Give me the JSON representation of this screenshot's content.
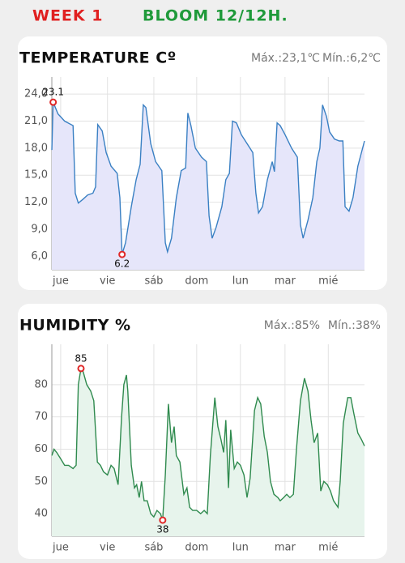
{
  "header": {
    "week": "WEEK 1",
    "bloom": "BLOOM 12/12H."
  },
  "chart_data": [
    {
      "type": "line",
      "title": "TEMPERATURE Cº",
      "stats": [
        "Máx.:23,1℃",
        "Mín.:6,2℃"
      ],
      "x": [
        -0.2,
        -0.17,
        -0.06,
        0.09,
        0.28,
        0.33,
        0.4,
        0.5,
        0.61,
        0.73,
        0.79,
        0.84,
        0.94,
        1.03,
        1.14,
        1.28,
        1.34,
        1.39,
        1.47,
        1.6,
        1.71,
        1.8,
        1.87,
        1.93,
        2.04,
        2.15,
        2.29,
        2.37,
        2.42,
        2.51,
        2.62,
        2.73,
        2.83,
        2.88,
        2.95,
        3.05,
        3.19,
        3.3,
        3.36,
        3.43,
        3.52,
        3.65,
        3.74,
        3.82,
        3.89,
        3.98,
        4.09,
        4.22,
        4.35,
        4.42,
        4.48,
        4.57,
        4.68,
        4.79,
        4.84,
        4.9,
        4.97,
        5.08,
        5.23,
        5.36,
        5.43,
        5.49,
        5.6,
        5.71,
        5.8,
        5.87,
        5.93,
        6.02,
        6.09,
        6.2,
        6.31,
        6.39,
        6.44,
        6.53,
        6.62,
        6.73,
        6.88
      ],
      "series": [
        {
          "color": "#3a80c3",
          "fill": "#e6e6fa",
          "values": [
            17.8,
            23.1,
            21.8,
            21.0,
            20.5,
            13.0,
            11.9,
            12.3,
            12.8,
            13.0,
            13.7,
            20.6,
            19.9,
            17.5,
            16.0,
            15.2,
            12.5,
            6.2,
            7.5,
            11.5,
            14.5,
            16.2,
            22.8,
            22.5,
            18.5,
            16.5,
            15.5,
            7.5,
            6.5,
            8.0,
            12.5,
            15.5,
            15.8,
            21.9,
            20.5,
            18.0,
            17.0,
            16.5,
            10.5,
            8.0,
            9.2,
            11.5,
            14.5,
            15.2,
            21.0,
            20.8,
            19.5,
            18.5,
            17.5,
            13.0,
            10.8,
            11.5,
            14.5,
            16.5,
            15.4,
            20.8,
            20.5,
            19.5,
            18.0,
            17.0,
            9.5,
            8.0,
            10.0,
            12.5,
            16.5,
            18.0,
            22.8,
            21.5,
            19.8,
            19.0,
            18.8,
            18.8,
            11.5,
            11.0,
            12.5,
            16.0,
            18.8
          ]
        }
      ],
      "xlim": [
        -0.2,
        6.88
      ],
      "xticks": [
        {
          "value": 0,
          "label": "jue"
        },
        {
          "value": 1.06,
          "label": "vie"
        },
        {
          "value": 2.11,
          "label": "sáb"
        },
        {
          "value": 3.08,
          "label": "dom"
        },
        {
          "value": 4.07,
          "label": "lun"
        },
        {
          "value": 5.08,
          "label": "mar"
        },
        {
          "value": 6.06,
          "label": "mié"
        }
      ],
      "ylim": [
        4.5,
        25
      ],
      "yticks": [
        {
          "value": 6,
          "label": "6,0"
        },
        {
          "value": 9,
          "label": "9,0"
        },
        {
          "value": 12,
          "label": "12,0"
        },
        {
          "value": 15,
          "label": "15,0"
        },
        {
          "value": 18,
          "label": "18,0"
        },
        {
          "value": 21,
          "label": "21,0"
        },
        {
          "value": 24,
          "label": "24,0"
        }
      ],
      "grid": true
    },
    {
      "type": "line",
      "title": "HUMIDITY %",
      "stats": [
        "Máx.:85%",
        "Mín.:38%"
      ],
      "x": [
        -0.2,
        -0.15,
        -0.09,
        0,
        0.09,
        0.18,
        0.28,
        0.35,
        0.4,
        0.46,
        0.51,
        0.59,
        0.68,
        0.75,
        0.83,
        0.9,
        0.97,
        1.06,
        1.14,
        1.21,
        1.3,
        1.38,
        1.43,
        1.49,
        1.52,
        1.6,
        1.67,
        1.72,
        1.78,
        1.83,
        1.89,
        1.96,
        2.04,
        2.11,
        2.18,
        2.26,
        2.31,
        2.37,
        2.44,
        2.51,
        2.57,
        2.62,
        2.7,
        2.79,
        2.86,
        2.92,
        2.99,
        3.08,
        3.17,
        3.25,
        3.32,
        3.39,
        3.49,
        3.56,
        3.63,
        3.69,
        3.74,
        3.8,
        3.85,
        3.93,
        4.0,
        4.07,
        4.15,
        4.22,
        4.29,
        4.39,
        4.46,
        4.53,
        4.61,
        4.68,
        4.75,
        4.83,
        4.92,
        4.97,
        5.05,
        5.12,
        5.19,
        5.27,
        5.34,
        5.43,
        5.52,
        5.6,
        5.67,
        5.74,
        5.82,
        5.89,
        5.96,
        6.04,
        6.11,
        6.18,
        6.28,
        6.33,
        6.4,
        6.5,
        6.57,
        6.64,
        6.73,
        6.81,
        6.88
      ],
      "series": [
        {
          "color": "#2f8a4e",
          "fill": "#e7f4ec",
          "values": [
            58,
            60,
            59,
            57,
            55,
            55,
            54,
            55,
            80,
            85,
            84,
            80,
            78,
            75,
            56,
            55,
            53,
            52,
            55,
            54,
            49,
            70,
            80,
            83,
            78,
            55,
            48,
            49,
            45,
            50,
            44,
            44,
            40,
            39,
            41,
            40,
            38,
            52,
            74,
            62,
            67,
            58,
            56,
            46,
            48,
            42,
            41,
            41,
            40,
            41,
            40,
            58,
            76,
            67,
            63,
            59,
            69,
            48,
            66,
            54,
            56,
            55,
            52,
            45,
            51,
            72,
            76,
            74,
            64,
            59,
            50,
            46,
            45,
            44,
            45,
            46,
            45,
            46,
            60,
            75,
            82,
            78,
            69,
            62,
            65,
            47,
            50,
            49,
            47,
            44,
            42,
            50,
            68,
            76,
            76,
            71,
            65,
            63,
            61
          ]
        }
      ],
      "xlim": [
        -0.2,
        6.88
      ],
      "xticks": [
        {
          "value": 0,
          "label": "jue"
        },
        {
          "value": 1.06,
          "label": "vie"
        },
        {
          "value": 2.11,
          "label": "sáb"
        },
        {
          "value": 3.08,
          "label": "dom"
        },
        {
          "value": 4.07,
          "label": "lun"
        },
        {
          "value": 5.08,
          "label": "mar"
        },
        {
          "value": 6.06,
          "label": "mié"
        }
      ],
      "ylim": [
        33,
        90
      ],
      "yticks": [
        40,
        50,
        60,
        70,
        80
      ],
      "grid": true
    }
  ]
}
